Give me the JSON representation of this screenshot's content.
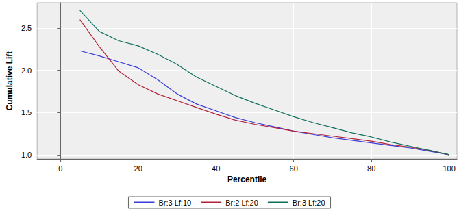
{
  "chart_data": {
    "type": "line",
    "x_label": "Percentile",
    "y_label": "Cumulative Lift",
    "x": [
      5,
      10,
      15,
      20,
      25,
      30,
      35,
      40,
      45,
      50,
      55,
      60,
      65,
      70,
      75,
      80,
      85,
      90,
      95,
      100
    ],
    "series": [
      {
        "name": "Br:3 Lf:10",
        "color": "#3b3bdb",
        "values": [
          2.23,
          2.17,
          2.1,
          2.03,
          1.89,
          1.72,
          1.6,
          1.52,
          1.44,
          1.38,
          1.33,
          1.28,
          1.24,
          1.2,
          1.17,
          1.14,
          1.11,
          1.08,
          1.04,
          1.0
        ]
      },
      {
        "name": "Br:2 Lf:20",
        "color": "#b2223a",
        "values": [
          2.6,
          2.28,
          1.99,
          1.83,
          1.72,
          1.64,
          1.56,
          1.48,
          1.41,
          1.36,
          1.32,
          1.28,
          1.25,
          1.22,
          1.19,
          1.16,
          1.12,
          1.09,
          1.05,
          1.0
        ]
      },
      {
        "name": "Br:3 Lf:20",
        "color": "#0e6e5c",
        "values": [
          2.71,
          2.46,
          2.35,
          2.29,
          2.19,
          2.07,
          1.92,
          1.81,
          1.7,
          1.61,
          1.53,
          1.45,
          1.38,
          1.32,
          1.26,
          1.21,
          1.15,
          1.1,
          1.05,
          1.0
        ]
      }
    ],
    "xlim": [
      -6,
      102
    ],
    "xticks": [
      0,
      20,
      40,
      60,
      80,
      100
    ],
    "ylim": [
      0.95,
      2.8
    ],
    "yticks": [
      {
        "value": 1,
        "label": "1.0"
      },
      {
        "value": 1.5,
        "label": "1.5"
      },
      {
        "value": 2,
        "label": "2.0"
      },
      {
        "value": 2.5,
        "label": "2.5"
      }
    ],
    "grid": true,
    "legend": "bottom"
  }
}
